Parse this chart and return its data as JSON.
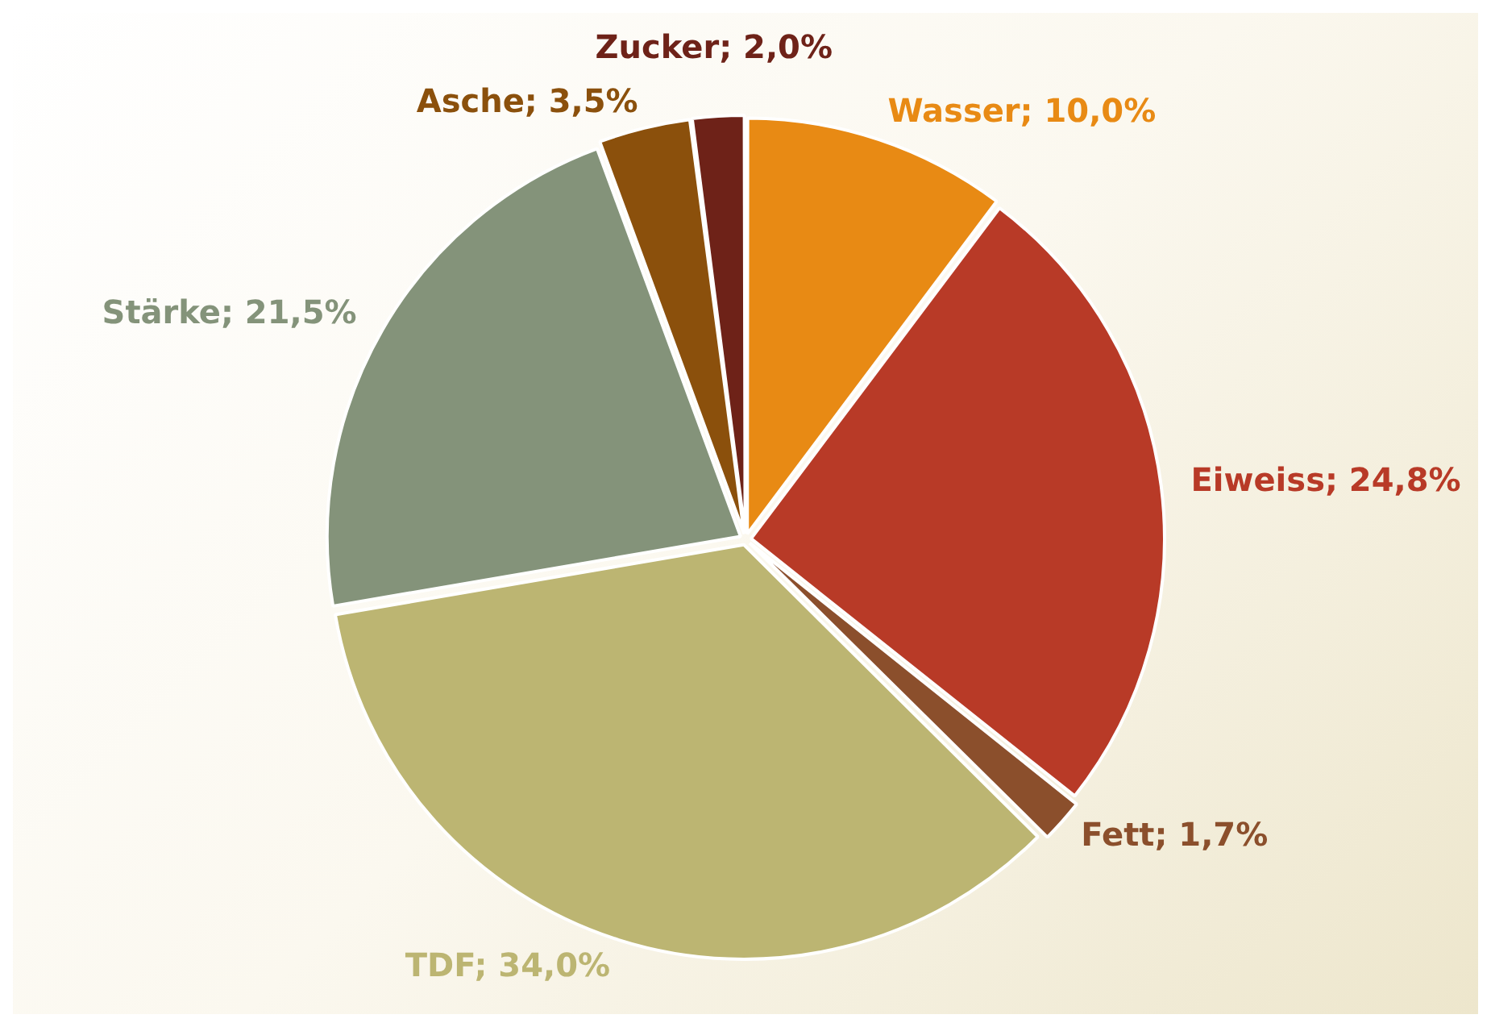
{
  "chart_data": {
    "type": "pie",
    "categories": [
      "Wasser",
      "Eiweiss",
      "Fett",
      "TDF",
      "Stärke",
      "Asche",
      "Zucker"
    ],
    "values": [
      10.0,
      24.8,
      1.7,
      34.0,
      21.5,
      3.5,
      2.0
    ],
    "colors": [
      "#e88a14",
      "#b83a27",
      "#8b4f2c",
      "#bcb572",
      "#84937a",
      "#8b500c",
      "#6e2218"
    ],
    "value_labels": [
      "10,0%",
      "24,8%",
      "1,7%",
      "34,0%",
      "21,5%",
      "3,5%",
      "2,0%"
    ],
    "legend": false
  }
}
